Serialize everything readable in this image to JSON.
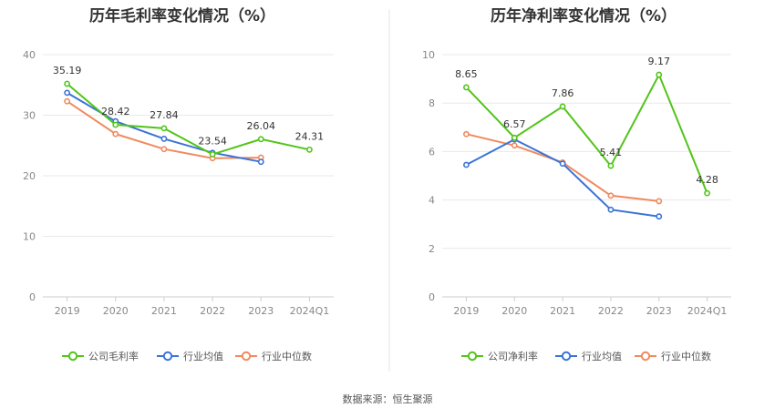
{
  "source": "数据来源：恒生聚源",
  "colors": {
    "company": "#52c41a",
    "industry_avg": "#3b74d6",
    "industry_median": "#f08a5d"
  },
  "chart_data": [
    {
      "type": "line",
      "title": "历年毛利率变化情况（%）",
      "categories": [
        "2019",
        "2020",
        "2021",
        "2022",
        "2023",
        "2024Q1"
      ],
      "ylim": [
        0,
        40
      ],
      "yticks": [
        "0",
        "10",
        "20",
        "30",
        "40"
      ],
      "grid": true,
      "legend_position": "bottom",
      "series": [
        {
          "name": "公司毛利率",
          "role": "company",
          "values": [
            35.19,
            28.42,
            27.84,
            23.54,
            26.04,
            24.31
          ],
          "labels": [
            "35.19",
            "28.42",
            "27.84",
            "23.54",
            "26.04",
            "24.31"
          ]
        },
        {
          "name": "行业均值",
          "role": "industry_avg",
          "values": [
            33.7,
            29.0,
            26.1,
            23.8,
            22.3,
            null
          ]
        },
        {
          "name": "行业中位数",
          "role": "industry_median",
          "values": [
            32.3,
            26.9,
            24.4,
            22.9,
            23.0,
            null
          ]
        }
      ]
    },
    {
      "type": "line",
      "title": "历年净利率变化情况（%）",
      "categories": [
        "2019",
        "2020",
        "2021",
        "2022",
        "2023",
        "2024Q1"
      ],
      "ylim": [
        0,
        10
      ],
      "yticks": [
        "0",
        "2",
        "4",
        "6",
        "8",
        "10"
      ],
      "grid": true,
      "legend_position": "bottom",
      "series": [
        {
          "name": "公司净利率",
          "role": "company",
          "values": [
            8.65,
            6.57,
            7.86,
            5.41,
            9.17,
            4.28
          ],
          "labels": [
            "8.65",
            "6.57",
            "7.86",
            "5.41",
            "9.17",
            "4.28"
          ]
        },
        {
          "name": "行业均值",
          "role": "industry_avg",
          "values": [
            5.45,
            6.5,
            5.5,
            3.6,
            3.32,
            null
          ]
        },
        {
          "name": "行业中位数",
          "role": "industry_median",
          "values": [
            6.72,
            6.25,
            5.55,
            4.18,
            3.95,
            null
          ]
        }
      ]
    }
  ]
}
